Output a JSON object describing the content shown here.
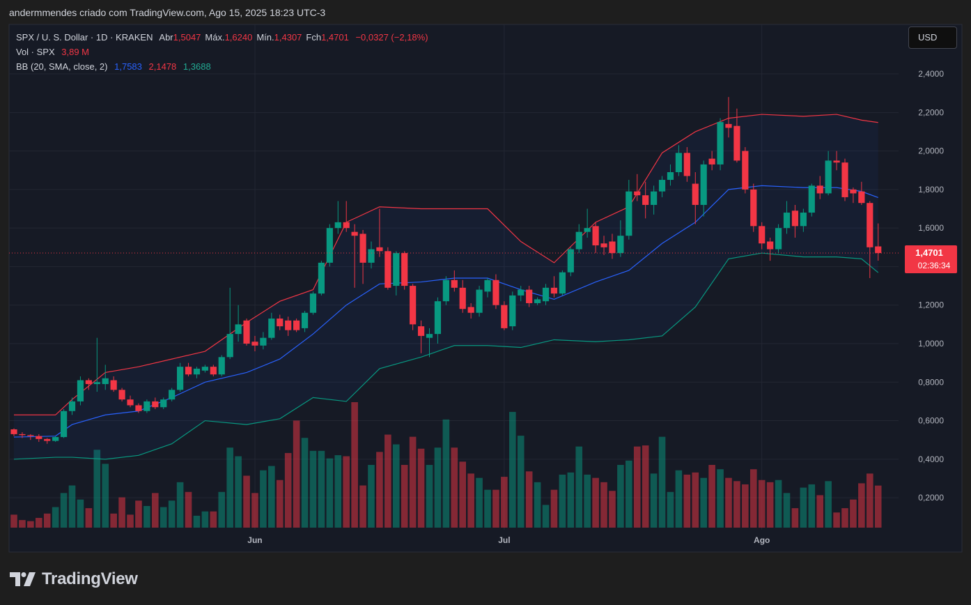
{
  "attribution": "andermmendes criado com TradingView.com, Ago 15, 2025 18:23 UTC-3",
  "brand": "TradingView",
  "chart_data": {
    "type": "candlestick",
    "title": "SPX / U. S. Dollar · 1D · KRAKEN",
    "ohlc_legend": [
      {
        "label": "Abr",
        "value": "1,5047"
      },
      {
        "label": "Máx.",
        "value": "1,6240"
      },
      {
        "label": "Mín.",
        "value": "1,4307"
      },
      {
        "label": "Fch",
        "value": "1,4701"
      }
    ],
    "change": "−0,0327 (−2,18%)",
    "volume_legend": {
      "label": "Vol · SPX",
      "value": "3,89 M"
    },
    "bb_legend": {
      "label": "BB (20, SMA, close, 2)",
      "values": [
        "1,7583",
        "2,1478",
        "1,3688"
      ]
    },
    "currency": "USD",
    "last_price": {
      "label": "1,4701",
      "countdown": "02:36:34"
    },
    "categories": [
      null,
      null,
      null,
      null,
      null,
      null,
      null,
      null,
      null,
      null,
      null,
      null,
      null,
      null,
      null,
      null,
      null,
      null,
      null,
      null,
      null,
      null,
      null,
      null,
      null,
      null,
      null,
      null,
      null,
      "Jun",
      null,
      null,
      null,
      null,
      null,
      null,
      null,
      null,
      null,
      null,
      null,
      null,
      null,
      null,
      null,
      null,
      null,
      null,
      null,
      null,
      null,
      null,
      null,
      null,
      null,
      null,
      null,
      null,
      null,
      "Jul",
      null,
      null,
      null,
      null,
      null,
      null,
      null,
      null,
      null,
      null,
      null,
      null,
      null,
      null,
      null,
      null,
      null,
      null,
      null,
      null,
      null,
      null,
      null,
      null,
      null,
      null,
      null,
      null,
      null,
      null,
      "Ago",
      null,
      null,
      null,
      null,
      null,
      null,
      null,
      null,
      null,
      null,
      null,
      null,
      null,
      null
    ],
    "open": [
      0.555,
      0.53,
      0.525,
      0.52,
      0.505,
      0.495,
      0.515,
      0.65,
      0.7,
      0.81,
      0.79,
      0.79,
      0.81,
      0.76,
      0.71,
      0.68,
      0.65,
      0.7,
      0.67,
      0.71,
      0.76,
      0.88,
      0.84,
      0.86,
      0.88,
      0.84,
      0.93,
      1.05,
      1.12,
      1.01,
      0.99,
      1.03,
      1.13,
      1.12,
      1.12,
      1.08,
      1.16,
      1.26,
      1.42,
      1.6,
      1.63,
      1.58,
      1.57,
      1.42,
      1.5,
      1.48,
      1.3,
      1.47,
      1.3,
      1.09,
      1.03,
      1.05,
      1.22,
      1.33,
      1.29,
      1.19,
      1.16,
      1.27,
      1.33,
      1.2,
      1.09,
      1.25,
      1.28,
      1.21,
      1.22,
      1.29,
      1.26,
      1.37,
      1.49,
      1.58,
      1.61,
      1.52,
      1.53,
      1.47,
      1.56,
      1.79,
      1.77,
      1.72,
      1.79,
      1.85,
      1.89,
      1.99,
      1.83,
      1.72,
      1.96,
      1.93,
      2.14,
      2.13,
      2.0,
      1.8,
      1.61,
      1.53,
      1.49,
      1.6,
      1.69,
      1.61,
      1.68,
      1.82,
      1.78,
      1.95,
      1.94,
      1.8,
      1.79,
      1.73,
      1.5047
    ],
    "high": [
      0.56,
      0.54,
      0.53,
      0.53,
      0.51,
      0.52,
      0.66,
      0.72,
      0.83,
      0.82,
      1.03,
      0.89,
      0.83,
      0.77,
      0.73,
      0.69,
      0.71,
      0.72,
      0.72,
      0.77,
      0.9,
      0.9,
      0.88,
      0.89,
      0.89,
      0.94,
      1.29,
      1.2,
      1.13,
      1.04,
      1.06,
      1.16,
      1.15,
      1.14,
      1.13,
      1.17,
      1.27,
      1.43,
      1.62,
      1.74,
      1.74,
      1.62,
      1.59,
      1.53,
      1.7,
      1.5,
      1.48,
      1.48,
      1.31,
      1.12,
      1.08,
      1.24,
      1.35,
      1.38,
      1.33,
      1.21,
      1.3,
      1.34,
      1.36,
      1.22,
      1.27,
      1.3,
      1.3,
      1.24,
      1.31,
      1.35,
      1.38,
      1.5,
      1.62,
      1.7,
      1.63,
      1.56,
      1.57,
      1.64,
      1.85,
      1.88,
      1.84,
      1.82,
      1.87,
      1.93,
      2.03,
      2.02,
      1.89,
      1.95,
      2.0,
      2.17,
      2.28,
      2.22,
      2.02,
      1.83,
      1.63,
      1.55,
      1.62,
      1.74,
      1.72,
      1.7,
      1.83,
      1.87,
      2.0,
      2.0,
      1.96,
      1.81,
      1.84,
      1.74,
      1.624
    ],
    "low": [
      0.52,
      0.51,
      0.5,
      0.49,
      0.48,
      0.49,
      0.51,
      0.63,
      0.68,
      0.76,
      0.75,
      0.76,
      0.75,
      0.7,
      0.67,
      0.64,
      0.64,
      0.66,
      0.66,
      0.7,
      0.75,
      0.83,
      0.82,
      0.85,
      0.83,
      0.83,
      0.92,
      1.01,
      0.99,
      0.96,
      0.97,
      1.02,
      1.07,
      1.04,
      1.06,
      1.06,
      1.15,
      1.25,
      1.4,
      1.57,
      1.58,
      1.29,
      1.31,
      1.39,
      1.45,
      1.28,
      1.25,
      1.28,
      1.07,
      0.95,
      0.93,
      1.0,
      1.2,
      1.27,
      1.16,
      1.13,
      1.14,
      1.24,
      1.18,
      1.07,
      1.07,
      1.22,
      1.19,
      1.2,
      1.2,
      1.24,
      1.25,
      1.35,
      1.47,
      1.55,
      1.47,
      1.46,
      1.44,
      1.45,
      1.54,
      1.74,
      1.65,
      1.67,
      1.76,
      1.82,
      1.87,
      1.84,
      1.62,
      1.66,
      1.9,
      1.9,
      2.07,
      1.94,
      1.78,
      1.58,
      1.49,
      1.43,
      1.47,
      1.57,
      1.55,
      1.58,
      1.66,
      1.75,
      1.77,
      1.9,
      1.74,
      1.73,
      1.72,
      1.34,
      1.4307
    ],
    "close": [
      0.53,
      0.525,
      0.52,
      0.505,
      0.495,
      0.515,
      0.65,
      0.7,
      0.81,
      0.79,
      0.8,
      0.82,
      0.76,
      0.71,
      0.68,
      0.65,
      0.7,
      0.67,
      0.71,
      0.76,
      0.88,
      0.84,
      0.87,
      0.88,
      0.84,
      0.93,
      1.05,
      1.1,
      1.0,
      0.99,
      1.03,
      1.13,
      1.09,
      1.07,
      1.07,
      1.16,
      1.26,
      1.42,
      1.6,
      1.63,
      1.6,
      1.56,
      1.42,
      1.49,
      1.48,
      1.29,
      1.47,
      1.3,
      1.1,
      1.04,
      1.05,
      1.22,
      1.33,
      1.29,
      1.18,
      1.16,
      1.28,
      1.33,
      1.2,
      1.08,
      1.25,
      1.28,
      1.21,
      1.23,
      1.29,
      1.26,
      1.37,
      1.49,
      1.58,
      1.6,
      1.51,
      1.5,
      1.47,
      1.56,
      1.79,
      1.77,
      1.72,
      1.79,
      1.85,
      1.89,
      1.99,
      1.87,
      1.72,
      1.93,
      1.93,
      2.15,
      2.12,
      1.95,
      1.8,
      1.61,
      1.52,
      1.49,
      1.6,
      1.68,
      1.61,
      1.68,
      1.82,
      1.78,
      1.95,
      1.94,
      1.76,
      1.78,
      1.73,
      1.5,
      1.4701
    ],
    "volume": [
      1.2,
      0.7,
      0.6,
      0.9,
      1.3,
      1.9,
      3.2,
      3.9,
      2.6,
      1.8,
      7.2,
      5.9,
      1.3,
      2.8,
      1.2,
      2.5,
      2.0,
      3.2,
      1.9,
      2.5,
      4.2,
      3.3,
      1.1,
      1.5,
      1.5,
      3.3,
      7.4,
      6.6,
      4.8,
      3.2,
      5.3,
      5.7,
      4.4,
      6.9,
      9.9,
      8.3,
      7.1,
      7.1,
      6.4,
      6.7,
      6.6,
      11.6,
      3.9,
      5.8,
      7.0,
      8.6,
      7.7,
      5.8,
      8.4,
      7.3,
      5.8,
      7.4,
      10.0,
      7.4,
      6.1,
      5.0,
      4.6,
      3.5,
      3.5,
      4.7,
      10.7,
      8.5,
      5.2,
      4.2,
      2.1,
      3.5,
      4.9,
      5.1,
      7.5,
      4.9,
      4.6,
      4.2,
      3.4,
      5.8,
      6.2,
      7.5,
      7.6,
      5.0,
      8.4,
      3.3,
      5.3,
      4.9,
      5.1,
      4.6,
      5.8,
      5.4,
      4.6,
      4.3,
      4.0,
      5.4,
      4.4,
      4.2,
      4.4,
      3.2,
      1.8,
      3.7,
      4.0,
      3.0,
      4.3,
      1.4,
      1.8,
      2.6,
      4.1,
      5.0,
      3.89
    ],
    "up_color": "#089981",
    "down_color": "#f23645",
    "bands": [
      {
        "color": "#2962ff",
        "x": [
          0,
          5,
          7,
          11,
          15,
          19,
          23,
          28,
          32,
          36,
          40,
          44,
          49,
          53,
          57,
          61,
          65,
          70,
          74,
          78,
          82,
          86,
          90,
          95,
          99,
          102,
          104
        ],
        "values": [
          0.515,
          0.52,
          0.58,
          0.63,
          0.65,
          0.72,
          0.8,
          0.85,
          0.92,
          1.05,
          1.2,
          1.31,
          1.32,
          1.34,
          1.34,
          1.28,
          1.23,
          1.32,
          1.38,
          1.52,
          1.63,
          1.8,
          1.82,
          1.81,
          1.81,
          1.79,
          1.7583
        ]
      },
      {
        "color": "#f23645",
        "x": [
          0,
          5,
          7,
          11,
          15,
          19,
          23,
          28,
          32,
          36,
          40,
          44,
          49,
          53,
          57,
          61,
          65,
          70,
          74,
          78,
          82,
          86,
          90,
          95,
          99,
          102,
          104
        ],
        "values": [
          0.63,
          0.63,
          0.71,
          0.85,
          0.88,
          0.92,
          0.96,
          1.11,
          1.22,
          1.28,
          1.63,
          1.71,
          1.7,
          1.7,
          1.7,
          1.53,
          1.42,
          1.63,
          1.71,
          1.99,
          2.1,
          2.17,
          2.19,
          2.18,
          2.19,
          2.16,
          2.1478
        ]
      },
      {
        "color": "#089981",
        "x": [
          0,
          5,
          7,
          11,
          15,
          19,
          23,
          28,
          32,
          36,
          40,
          44,
          49,
          53,
          57,
          61,
          65,
          70,
          74,
          78,
          82,
          86,
          90,
          95,
          99,
          102,
          104
        ],
        "values": [
          0.4,
          0.41,
          0.41,
          0.4,
          0.42,
          0.48,
          0.6,
          0.58,
          0.61,
          0.72,
          0.7,
          0.87,
          0.93,
          0.99,
          0.99,
          0.98,
          1.02,
          1.01,
          1.02,
          1.04,
          1.19,
          1.44,
          1.47,
          1.45,
          1.45,
          1.44,
          1.3688
        ]
      }
    ],
    "ylim": [
      0.034,
      2.657
    ],
    "yticks": [
      {
        "value": 0.2,
        "label": "0,2000"
      },
      {
        "value": 0.4,
        "label": "0,4000"
      },
      {
        "value": 0.6,
        "label": "0,6000"
      },
      {
        "value": 0.8,
        "label": "0,8000"
      },
      {
        "value": 1.0,
        "label": "1,0000"
      },
      {
        "value": 1.2,
        "label": "1,2000"
      },
      {
        "value": 1.4,
        "label": "1,4000"
      },
      {
        "value": 1.6,
        "label": "1,6000"
      },
      {
        "value": 1.8,
        "label": "1,8000"
      },
      {
        "value": 2.0,
        "label": "2,0000"
      },
      {
        "value": 2.2,
        "label": "2,2000"
      },
      {
        "value": 2.4,
        "label": "2,4000"
      }
    ],
    "grid": true
  }
}
